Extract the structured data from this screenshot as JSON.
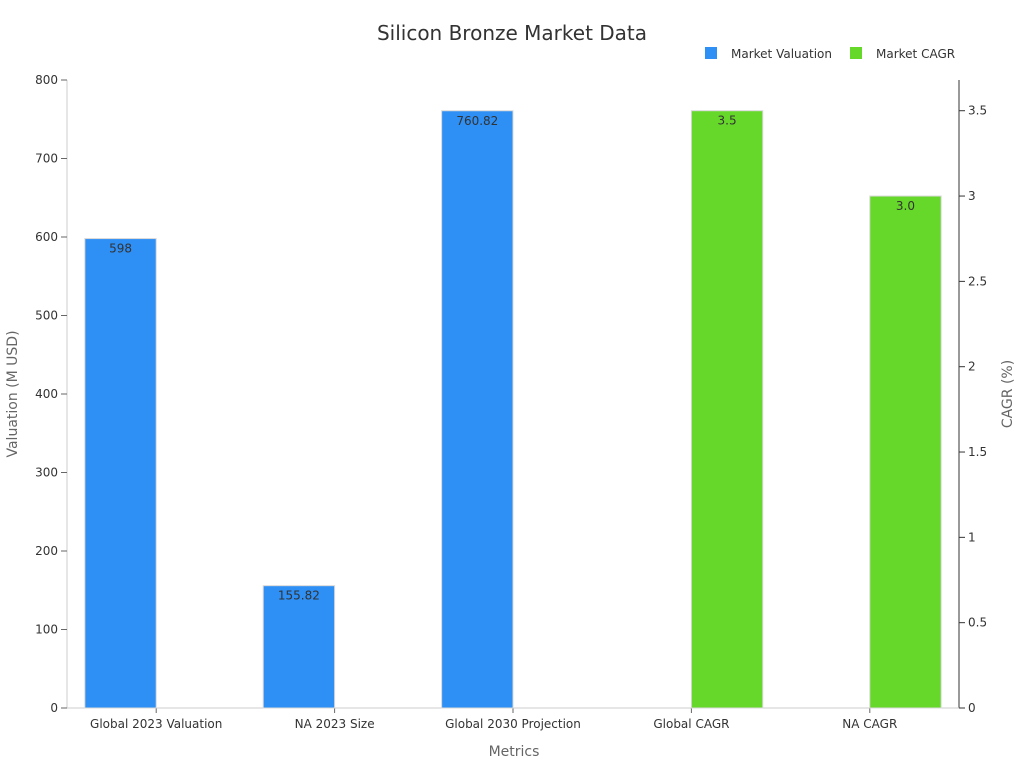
{
  "chart_data": {
    "type": "bar",
    "title": "Silicon Bronze Market Data",
    "xlabel": "Metrics",
    "ylabel": "Valuation (M USD)",
    "y2label": "CAGR (%)",
    "categories": [
      "Global 2023 Valuation",
      "NA 2023 Size",
      "Global 2030 Projection",
      "Global CAGR",
      "NA CAGR"
    ],
    "ylim": [
      0,
      800
    ],
    "y2lim": [
      0,
      3.68
    ],
    "yticks": [
      0,
      100,
      200,
      300,
      400,
      500,
      600,
      700,
      800
    ],
    "y2ticks": [
      0,
      0.5,
      1,
      1.5,
      2,
      2.5,
      3,
      3.5
    ],
    "y2tick_labels": [
      "0",
      "0.5",
      "1",
      "1.5",
      "2",
      "2.5",
      "3",
      "3.5"
    ],
    "legend_position": "top-right",
    "grid": false,
    "series": [
      {
        "name": "Market Valuation",
        "axis": "left",
        "color": "#2e8ff5",
        "values": [
          598,
          155.82,
          760.82,
          null,
          null
        ],
        "labels": [
          "598",
          "155.82",
          "760.82",
          "",
          ""
        ]
      },
      {
        "name": "Market CAGR",
        "axis": "right",
        "color": "#66d82a",
        "values": [
          null,
          null,
          null,
          3.5,
          3.0
        ],
        "labels": [
          "",
          "",
          "",
          "3.5",
          "3.0"
        ]
      }
    ]
  }
}
